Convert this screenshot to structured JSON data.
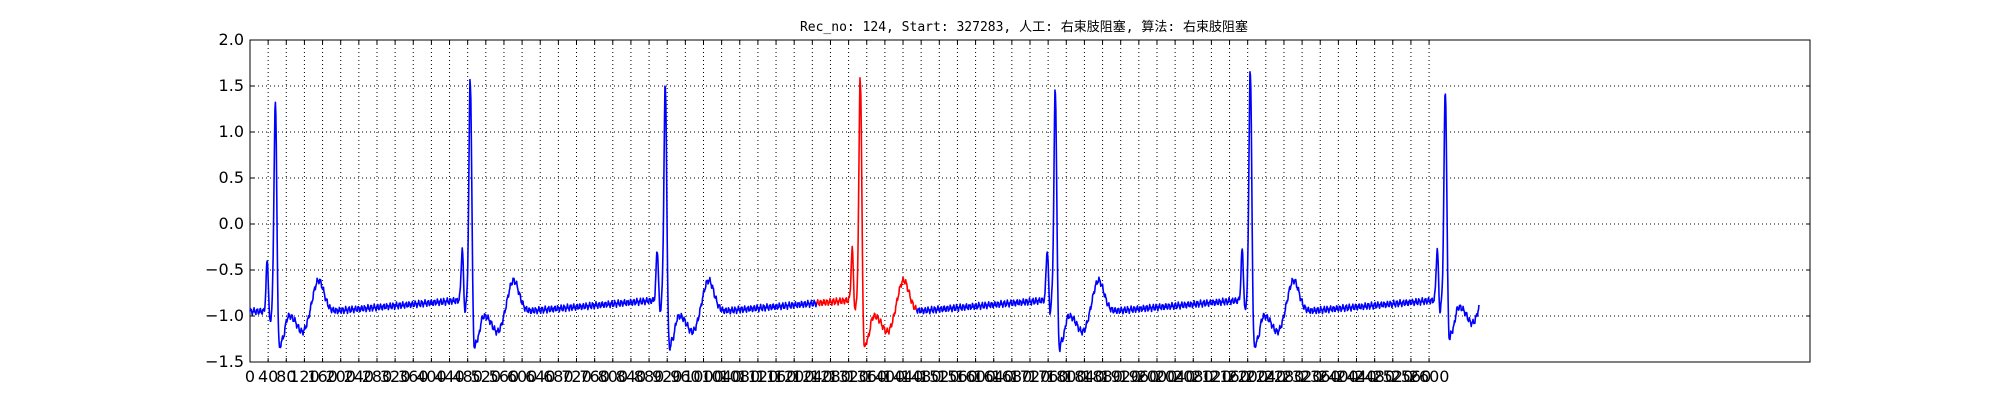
{
  "chart_data": {
    "type": "line",
    "title": "Rec_no: 124, Start: 327283, 人工: 右束肢阻塞, 算法: 右束肢阻塞",
    "xlabel": "",
    "ylabel": "",
    "xlim": [
      0,
      3440
    ],
    "ylim": [
      -1.5,
      2.0
    ],
    "grid": true,
    "grid_style": "dotted",
    "x_ticks": [
      0,
      40,
      80,
      120,
      160,
      200,
      240,
      280,
      320,
      360,
      400,
      440,
      480,
      520,
      560,
      600,
      640,
      680,
      720,
      760,
      800,
      840,
      880,
      920,
      960,
      1000,
      1040,
      1080,
      1120,
      1160,
      1200,
      1240,
      1280,
      1320,
      1360,
      1400,
      1440,
      1480,
      1520,
      1560,
      1600,
      1640,
      1680,
      1720,
      1760,
      1800,
      1840,
      1880,
      1920,
      1960,
      2000,
      2040,
      2080,
      2120,
      2160,
      2200,
      2240,
      2280,
      2320,
      2360,
      2400,
      2440,
      2480,
      2520,
      2560,
      2600
    ],
    "x_tick_labels": [
      "0",
      "40",
      "80",
      "120",
      "160",
      "200",
      "240",
      "280",
      "320",
      "360",
      "400",
      "440",
      "480",
      "520",
      "560",
      "600",
      "640",
      "680",
      "720",
      "760",
      "800",
      "840",
      "880",
      "920",
      "960",
      "1000",
      "1040",
      "1080",
      "1120",
      "1160",
      "1200",
      "1240",
      "1280",
      "1320",
      "1360",
      "1400",
      "1440",
      "1480",
      "1520",
      "1560",
      "1600",
      "1640",
      "1680",
      "1720",
      "1760",
      "1800",
      "1840",
      "1880",
      "1920",
      "1960",
      "2000",
      "2040",
      "2080",
      "2120",
      "2160",
      "2200",
      "2240",
      "2280",
      "2320",
      "2360",
      "2400",
      "2440",
      "2480",
      "2520",
      "2560",
      "2600"
    ],
    "y_ticks": [
      -1.5,
      -1.0,
      -0.5,
      0.0,
      0.5,
      1.0,
      1.5,
      2.0
    ],
    "y_tick_labels": [
      "−1.5",
      "−1.0",
      "−0.5",
      "0.0",
      "0.5",
      "1.0",
      "1.5",
      "2.0"
    ],
    "beats": [
      {
        "r_x": 56,
        "r_amp": 1.38,
        "color": "#0000ff"
      },
      {
        "r_x": 486,
        "r_amp": 1.58,
        "color": "#0000ff"
      },
      {
        "r_x": 916,
        "r_amp": 1.5,
        "color": "#0000ff"
      },
      {
        "r_x": 1346,
        "r_amp": 1.61,
        "color": "#ff0000"
      },
      {
        "r_x": 1776,
        "r_amp": 1.45,
        "color": "#0000ff"
      },
      {
        "r_x": 2206,
        "r_amp": 1.68,
        "color": "#0000ff"
      },
      {
        "r_x": 2636,
        "r_amp": 1.39,
        "color": "#0000ff"
      }
    ],
    "series": [
      {
        "color": "#0000ff",
        "x_range": [
          0,
          1250
        ]
      },
      {
        "color": "#ff0000",
        "x_range": [
          1250,
          1470
        ]
      },
      {
        "color": "#0000ff",
        "x_range": [
          1470,
          2710
        ]
      }
    ]
  }
}
